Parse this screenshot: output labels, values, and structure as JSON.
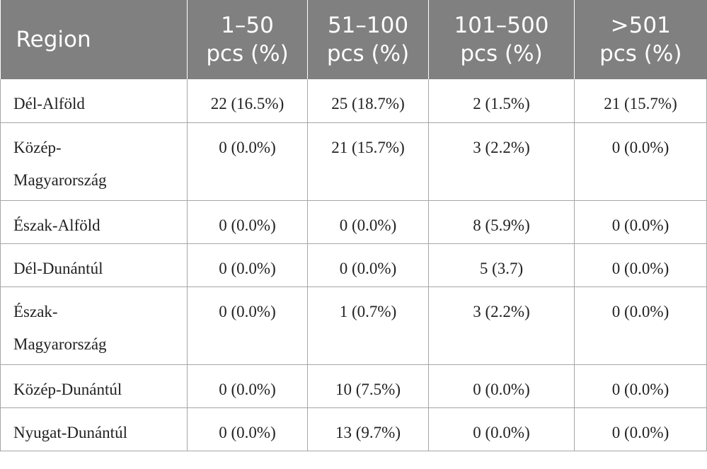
{
  "table": {
    "headers": {
      "region": "Region",
      "col1": [
        "1–50",
        "pcs (%)"
      ],
      "col2": [
        "51–100",
        "pcs (%)"
      ],
      "col3": [
        "101–500",
        "pcs (%)"
      ],
      "col4": [
        ">501",
        "pcs (%)"
      ]
    },
    "rows": [
      {
        "region": [
          "Dél-Alföld"
        ],
        "c1": "22 (16.5%)",
        "c2": "25 (18.7%)",
        "c3": "2 (1.5%)",
        "c4": "21 (15.7%)"
      },
      {
        "region": [
          "Közép-",
          "Magyarország"
        ],
        "c1": "0 (0.0%)",
        "c2": "21 (15.7%)",
        "c3": "3 (2.2%)",
        "c4": "0 (0.0%)"
      },
      {
        "region": [
          "Észak-Alföld"
        ],
        "c1": "0 (0.0%)",
        "c2": "0 (0.0%)",
        "c3": "8 (5.9%)",
        "c4": "0 (0.0%)"
      },
      {
        "region": [
          "Dél-Dunántúl"
        ],
        "c1": "0 (0.0%)",
        "c2": "0 (0.0%)",
        "c3": "5 (3.7)",
        "c4": "0 (0.0%)"
      },
      {
        "region": [
          "Észak-",
          "Magyarország"
        ],
        "c1": "0 (0.0%)",
        "c2": "1 (0.7%)",
        "c3": "3 (2.2%)",
        "c4": "0 (0.0%)"
      },
      {
        "region": [
          "Közép-Dunántúl"
        ],
        "c1": "0 (0.0%)",
        "c2": "10 (7.5%)",
        "c3": "0 (0.0%)",
        "c4": "0 (0.0%)"
      },
      {
        "region": [
          "Nyugat-Dunántúl"
        ],
        "c1": "0 (0.0%)",
        "c2": "13 (9.7%)",
        "c3": "0 (0.0%)",
        "c4": "0 (0.0%)"
      }
    ]
  }
}
